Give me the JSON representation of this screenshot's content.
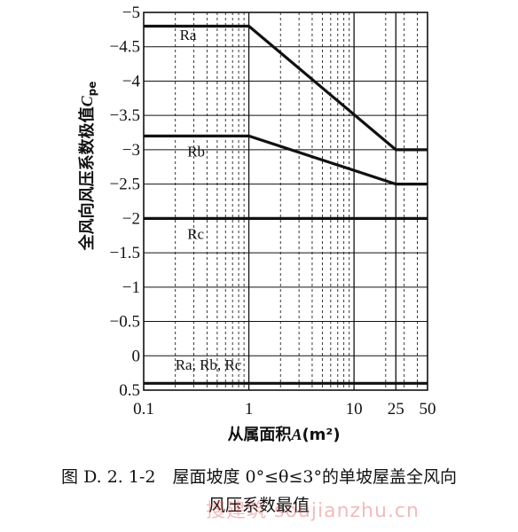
{
  "chart_data": {
    "type": "line",
    "ylabel": "全风向风压系数极值C_pe",
    "ylabel_main": "全风向风压系数极值",
    "ylabel_symbol": "C",
    "ylabel_subscript": "pe",
    "xlabel": "从属面积A(m²)",
    "xlabel_prefix": "从属面积",
    "xlabel_var": "A",
    "xlabel_unit": "(m²)",
    "x_scale": "log",
    "xlim": [
      0.1,
      50
    ],
    "ylim": [
      0.5,
      -5
    ],
    "y_inverted": true,
    "x_tick_labels": [
      {
        "value": 0.1,
        "label": "0.1"
      },
      {
        "value": 1,
        "label": "1"
      },
      {
        "value": 10,
        "label": "10"
      },
      {
        "value": 25,
        "label": "25"
      },
      {
        "value": 50,
        "label": "50"
      }
    ],
    "y_tick_labels": [
      {
        "value": -5,
        "label": "−5"
      },
      {
        "value": -4.5,
        "label": "−4.5"
      },
      {
        "value": -4,
        "label": "−4"
      },
      {
        "value": -3.5,
        "label": "−3.5"
      },
      {
        "value": -3,
        "label": "−3"
      },
      {
        "value": -2.5,
        "label": "−2.5"
      },
      {
        "value": -2,
        "label": "−2"
      },
      {
        "value": -1.5,
        "label": "−1.5"
      },
      {
        "value": -1,
        "label": "−1"
      },
      {
        "value": -0.5,
        "label": "−0.5"
      },
      {
        "value": 0,
        "label": "0"
      },
      {
        "value": 0.5,
        "label": "0.5"
      }
    ],
    "grid": true,
    "series": [
      {
        "name": "Ra",
        "points": [
          [
            0.1,
            -4.8
          ],
          [
            1,
            -4.8
          ],
          [
            25,
            -3.0
          ],
          [
            50,
            -3.0
          ]
        ]
      },
      {
        "name": "Rb",
        "points": [
          [
            0.1,
            -3.2
          ],
          [
            1,
            -3.2
          ],
          [
            25,
            -2.5
          ],
          [
            50,
            -2.5
          ]
        ]
      },
      {
        "name": "Rc",
        "points": [
          [
            0.1,
            -2.0
          ],
          [
            50,
            -2.0
          ]
        ]
      },
      {
        "name": "Ra, Rb, Rc",
        "points": [
          [
            0.1,
            0.4
          ],
          [
            50,
            0.4
          ]
        ]
      }
    ],
    "annotations": [
      {
        "text": "Ra",
        "x": 0.22,
        "y": -4.6
      },
      {
        "text": "Rb",
        "x": 0.26,
        "y": -2.9
      },
      {
        "text": "Rc",
        "x": 0.26,
        "y": -1.7
      },
      {
        "text": "Ra, Rb, Rc",
        "x": 0.2,
        "y": 0.2
      }
    ]
  },
  "caption": {
    "line1": "图 D. 2. 1-2　屋面坡度 0°≤θ≤3°的单坡屋盖全风向",
    "line2": "风压系数最值"
  },
  "watermark": "搜建筑 soujianzhu.cn"
}
